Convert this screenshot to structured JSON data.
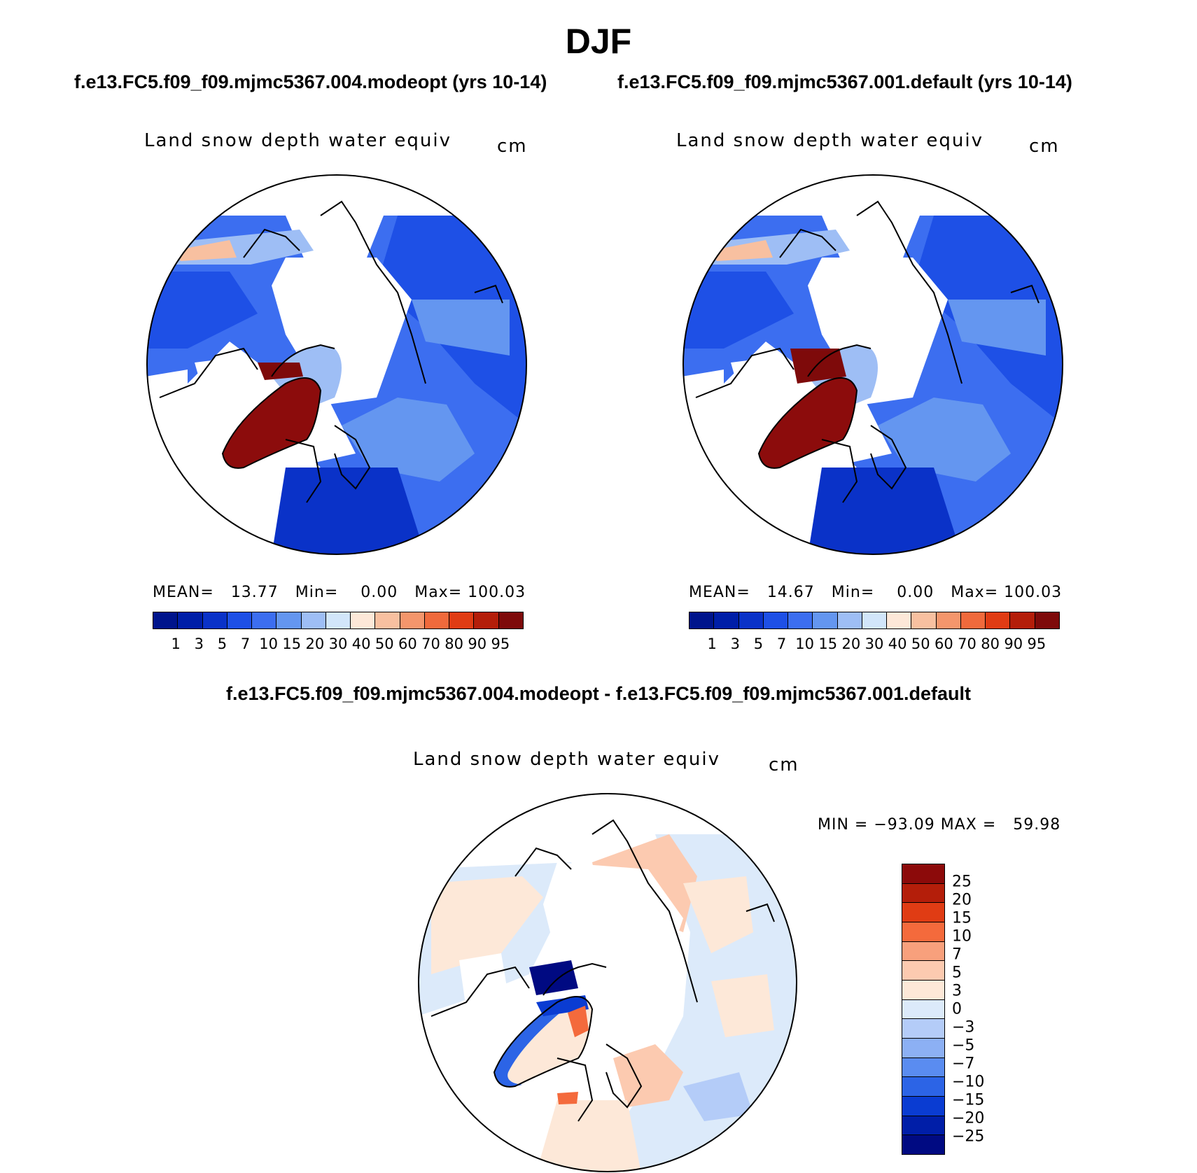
{
  "title": "DJF",
  "panels": [
    {
      "subtitle": "f.e13.FC5.f09_f09.mjmc5367.004.modeopt (yrs 10-14)",
      "variable": "Land snow depth water equiv",
      "units": "cm",
      "mean_label": "MEAN=",
      "mean_value": "13.77",
      "min_label": "Min=",
      "min_value": "0.00",
      "max_label": "Max=",
      "max_value": "100.03",
      "greenland_color": "#8c0c0c"
    },
    {
      "subtitle": "f.e13.FC5.f09_f09.mjmc5367.001.default (yrs 10-14)",
      "variable": "Land snow depth water equiv",
      "units": "cm",
      "mean_label": "MEAN=",
      "mean_value": "14.67",
      "min_label": "Min=",
      "min_value": "0.00",
      "max_label": "Max=",
      "max_value": "100.03",
      "greenland_color": "#8c0c0c"
    }
  ],
  "abs_colorbar": {
    "colors": [
      "#00148c",
      "#001ea8",
      "#0a32c8",
      "#1e50e6",
      "#3c6ef0",
      "#6496f0",
      "#9ebef5",
      "#d2e6fa",
      "#fde8d8",
      "#f8c0a0",
      "#f4966c",
      "#f06a3c",
      "#e03c14",
      "#b41e0a",
      "#7e0a0a"
    ],
    "labels": [
      "1",
      "3",
      "5",
      "7",
      "10",
      "15",
      "20",
      "30",
      "40",
      "50",
      "60",
      "70",
      "80",
      "90",
      "95"
    ]
  },
  "diff": {
    "title": "f.e13.FC5.f09_f09.mjmc5367.004.modeopt - f.e13.FC5.f09_f09.mjmc5367.001.default",
    "variable": "Land snow depth water equiv",
    "units": "cm",
    "minmax": "MIN = −93.09 MAX =   59.98",
    "colorbar": {
      "colors": [
        "#8c0a0a",
        "#b41e0a",
        "#e03c14",
        "#f46a3c",
        "#f8a07c",
        "#fccab0",
        "#fde8d8",
        "#dceafa",
        "#b4ccf8",
        "#8cb0f4",
        "#5a8cf0",
        "#2c64e6",
        "#0a3cd2",
        "#001ea8",
        "#000a82"
      ],
      "labels": [
        "25",
        "20",
        "15",
        "10",
        "7",
        "5",
        "3",
        "0",
        "−3",
        "−5",
        "−7",
        "−10",
        "−15",
        "−20",
        "−25"
      ]
    }
  }
}
